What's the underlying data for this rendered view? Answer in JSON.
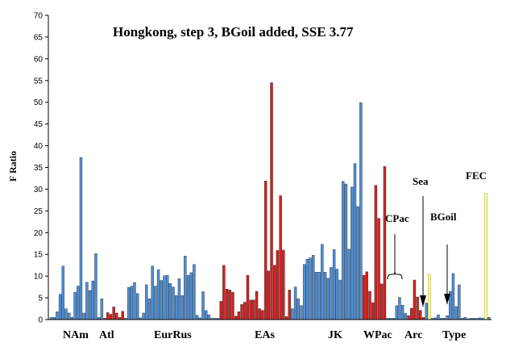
{
  "chart_data": {
    "type": "bar",
    "title": "Hongkong, step 3, BGoil added, SSE 3.77",
    "ylabel": "F Ratio",
    "xlabel": "",
    "ylim": [
      0,
      70
    ],
    "yticks": [
      0,
      5,
      10,
      15,
      20,
      25,
      30,
      35,
      40,
      45,
      50,
      55,
      60,
      65,
      70
    ],
    "grid": false,
    "colors": {
      "blue": "#4d8fd6",
      "red": "#d42020",
      "yellow": "#ffff9c"
    },
    "values": [
      0.5,
      0.5,
      1.8,
      5.8,
      12.3,
      2.5,
      1.5,
      0.5,
      6.3,
      7.7,
      37.3,
      1.5,
      8.6,
      6.7,
      8.9,
      15.2,
      0.5,
      4.8,
      0.3,
      1.6,
      1.2,
      2.9,
      1.5,
      0.5,
      1.9,
      0.3,
      7.4,
      7.7,
      8.5,
      6.0,
      0.4,
      1.5,
      8.0,
      4.8,
      12.3,
      7.7,
      11.5,
      9.0,
      10.1,
      10.2,
      8.3,
      7.5,
      5.5,
      9.4,
      5.5,
      14.6,
      10.2,
      10.8,
      12.7,
      1.0,
      0.4,
      6.4,
      2.1,
      1.1,
      0.3,
      0.3,
      0.3,
      4.2,
      12.5,
      7.0,
      6.8,
      6.3,
      0.8,
      1.8,
      3.5,
      4.0,
      10.2,
      4.5,
      4.5,
      6.5,
      2.5,
      2.1,
      31.9,
      11.2,
      54.5,
      12.5,
      15.9,
      28.5,
      16.0,
      0.7,
      6.8,
      2.5,
      7.5,
      4.8,
      3.2,
      12.7,
      13.9,
      14.2,
      14.8,
      10.9,
      10.9,
      17.3,
      10.9,
      9.5,
      12.0,
      16.1,
      11.6,
      9.1,
      31.8,
      31.2,
      16.2,
      30.5,
      35.9,
      26.0,
      49.9,
      10.2,
      11.0,
      6.5,
      3.9,
      30.9,
      23.3,
      8.2,
      35.2,
      0.3,
      0.3,
      0.3,
      3.2,
      5.1,
      3.3,
      1.4,
      0.9,
      2.6,
      9.1,
      5.2,
      2.1,
      0.5,
      3.8,
      10.4,
      0.3,
      0.4,
      1.1,
      0.3,
      0.3,
      0.9,
      6.5,
      10.6,
      3.0,
      8.0,
      0.3,
      0.5,
      0.2,
      0.3,
      0.3,
      0.3,
      0.4,
      0.3,
      29.0,
      0.5
    ],
    "colors_per_bar": [
      "b",
      "b",
      "b",
      "b",
      "b",
      "b",
      "b",
      "b",
      "b",
      "b",
      "b",
      "b",
      "b",
      "b",
      "b",
      "b",
      "b",
      "b",
      "r",
      "r",
      "r",
      "r",
      "r",
      "r",
      "r",
      "b",
      "b",
      "b",
      "b",
      "b",
      "b",
      "b",
      "b",
      "b",
      "b",
      "b",
      "b",
      "b",
      "b",
      "b",
      "b",
      "b",
      "b",
      "b",
      "b",
      "b",
      "b",
      "b",
      "b",
      "b",
      "b",
      "b",
      "b",
      "b",
      "b",
      "b",
      "b",
      "r",
      "r",
      "r",
      "r",
      "r",
      "r",
      "r",
      "r",
      "r",
      "r",
      "r",
      "r",
      "r",
      "r",
      "r",
      "r",
      "r",
      "r",
      "r",
      "r",
      "r",
      "r",
      "r",
      "r",
      "b",
      "b",
      "b",
      "b",
      "b",
      "b",
      "b",
      "b",
      "b",
      "b",
      "b",
      "b",
      "b",
      "b",
      "b",
      "b",
      "b",
      "b",
      "b",
      "b",
      "b",
      "b",
      "b",
      "b",
      "r",
      "r",
      "r",
      "r",
      "r",
      "r",
      "r",
      "r",
      "b",
      "b",
      "b",
      "b",
      "b",
      "b",
      "b",
      "r",
      "r",
      "r",
      "r",
      "r",
      "r",
      "b",
      "y",
      "b",
      "b",
      "b",
      "b",
      "b",
      "b",
      "b",
      "b",
      "b",
      "b",
      "b",
      "b",
      "b",
      "b",
      "b",
      "b",
      "b",
      "b",
      "y",
      "b"
    ],
    "region_labels": [
      "NAm",
      "Atl",
      "EurRus",
      "EAs",
      "JK",
      "WPac",
      "Arc",
      "Type"
    ],
    "annotations": [
      "CPac",
      "Sea",
      "BGoil",
      "FEC"
    ]
  }
}
